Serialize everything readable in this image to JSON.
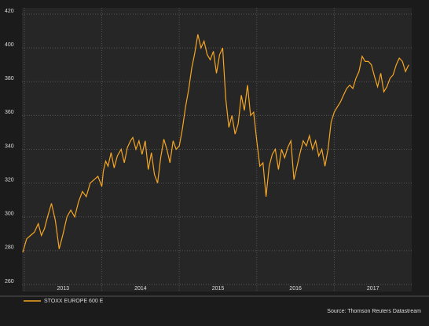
{
  "chart_data": {
    "type": "line",
    "x": [
      2012.98,
      2013.03,
      2013.08,
      2013.13,
      2013.18,
      2013.22,
      2013.26,
      2013.3,
      2013.35,
      2013.4,
      2013.45,
      2013.5,
      2013.55,
      2013.6,
      2013.65,
      2013.7,
      2013.75,
      2013.8,
      2013.85,
      2013.9,
      2013.95,
      2014.0,
      2014.02,
      2014.05,
      2014.08,
      2014.12,
      2014.16,
      2014.2,
      2014.25,
      2014.29,
      2014.33,
      2014.37,
      2014.4,
      2014.44,
      2014.48,
      2014.52,
      2014.56,
      2014.6,
      2014.64,
      2014.68,
      2014.72,
      2014.76,
      2014.8,
      2014.84,
      2014.88,
      2014.92,
      2014.96,
      2015.0,
      2015.04,
      2015.08,
      2015.12,
      2015.16,
      2015.2,
      2015.24,
      2015.28,
      2015.32,
      2015.36,
      2015.4,
      2015.44,
      2015.48,
      2015.52,
      2015.56,
      2015.6,
      2015.64,
      2015.68,
      2015.72,
      2015.76,
      2015.8,
      2015.84,
      2015.88,
      2015.92,
      2015.96,
      2016.0,
      2016.04,
      2016.08,
      2016.12,
      2016.16,
      2016.2,
      2016.24,
      2016.28,
      2016.32,
      2016.36,
      2016.4,
      2016.44,
      2016.48,
      2016.52,
      2016.56,
      2016.6,
      2016.64,
      2016.68,
      2016.72,
      2016.76,
      2016.8,
      2016.84,
      2016.88,
      2016.92,
      2016.96,
      2017.0,
      2017.04,
      2017.08,
      2017.12,
      2017.16,
      2017.2,
      2017.24,
      2017.28,
      2017.32,
      2017.36,
      2017.4,
      2017.44,
      2017.48,
      2017.52,
      2017.56,
      2017.6,
      2017.64,
      2017.68,
      2017.72,
      2017.76,
      2017.8,
      2017.84,
      2017.88,
      2017.92,
      2017.96
    ],
    "series": [
      {
        "name": "STOXX EUROPE 600 E",
        "color": "#f5a623",
        "values": [
          279,
          287,
          289,
          291,
          296,
          289,
          293,
          300,
          308,
          298,
          281,
          290,
          300,
          304,
          300,
          309,
          315,
          312,
          320,
          322,
          324,
          318,
          327,
          333,
          330,
          338,
          329,
          336,
          340,
          332,
          341,
          345,
          347,
          340,
          345,
          337,
          345,
          328,
          338,
          325,
          320,
          335,
          346,
          340,
          332,
          345,
          340,
          342,
          352,
          365,
          375,
          388,
          397,
          408,
          400,
          404,
          396,
          393,
          398,
          385,
          396,
          400,
          370,
          353,
          360,
          349,
          355,
          372,
          363,
          378,
          360,
          362,
          345,
          330,
          332,
          312,
          330,
          337,
          340,
          328,
          340,
          335,
          341,
          345,
          322,
          330,
          338,
          345,
          342,
          348,
          340,
          345,
          336,
          340,
          330,
          340,
          356,
          362,
          365,
          368,
          372,
          376,
          378,
          376,
          382,
          386,
          395,
          392,
          392,
          390,
          383,
          377,
          385,
          374,
          377,
          382,
          384,
          390,
          394,
          392,
          386,
          390
        ]
      }
    ],
    "xlim": [
      2012.97,
      2018
    ],
    "xticks": [
      2013,
      2014,
      2015,
      2016,
      2017
    ],
    "ylim": [
      260,
      420
    ],
    "yticks": [
      260,
      280,
      300,
      320,
      340,
      360,
      380,
      400,
      420
    ],
    "grid": true,
    "legend": "bottom-left",
    "source": "Source: Thomson Reuters Datastream"
  }
}
